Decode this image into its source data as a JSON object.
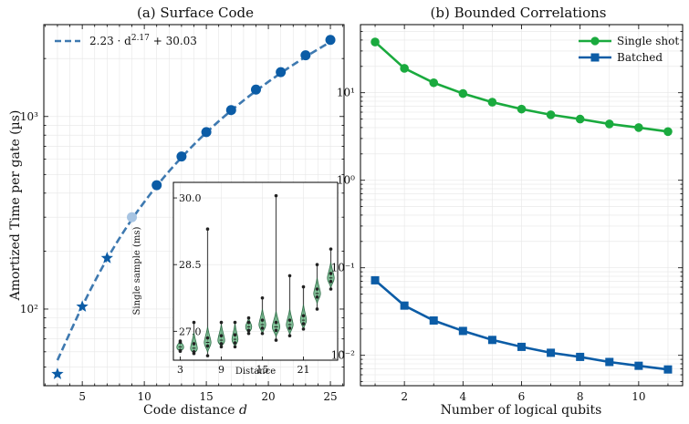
{
  "colors": {
    "blue": "#0b5ca6",
    "blue_light": "#a7c4e2",
    "green": "#1aaa3e",
    "violin_fill": "#6fb989",
    "violin_edge": "#2e6b46",
    "dark": "#222222"
  },
  "chart_data": [
    {
      "id": "left",
      "type": "scatter",
      "title": "(a) Surface Code",
      "xlabel": "Code distance d",
      "ylabel": "Amortized Time per gate (µs)",
      "xscale": "linear",
      "yscale": "log",
      "xlim": [
        1.9,
        26.1
      ],
      "ylim": [
        40,
        3000
      ],
      "xticks": [
        5,
        10,
        15,
        20,
        25
      ],
      "xtick_labels": [
        "5",
        "10",
        "15",
        "20",
        "25"
      ],
      "yticks": [
        100,
        1000
      ],
      "ytick_labels": [
        "10²",
        "10³"
      ],
      "legend": {
        "label": "2.23 · d^2.17 + 30.03",
        "base": "2.23 · d",
        "exp": "2.17",
        "tail": " + 30.03",
        "placement": "top-left"
      },
      "fit": {
        "a": 2.23,
        "b": 2.17,
        "c": 30.03,
        "x_from": 3,
        "x_to": 25
      },
      "star_points": {
        "x": [
          3,
          5,
          7
        ],
        "y": [
          46,
          103,
          184
        ]
      },
      "highlight_point": {
        "x": 9,
        "y": 300
      },
      "circle_points": {
        "x": [
          11,
          13,
          15,
          17,
          19,
          21,
          23,
          25
        ],
        "y": [
          440,
          620,
          830,
          1080,
          1380,
          1700,
          2080,
          2500
        ]
      }
    },
    {
      "id": "inset",
      "type": "violin",
      "xlabel": "Distance",
      "ylabel": "Single sample (ms)",
      "xlim": [
        2,
        26
      ],
      "ylim": [
        26.35,
        30.35
      ],
      "xticks": [
        3,
        9,
        15,
        21
      ],
      "xtick_labels": [
        "3",
        "9",
        "15",
        "21"
      ],
      "yticks": [
        27.0,
        28.5,
        30.0
      ],
      "ytick_labels": [
        "27.0",
        "28.5",
        "30.0"
      ],
      "violins": [
        {
          "x": 3,
          "median": 26.65,
          "lo": 26.55,
          "hi": 26.78,
          "width": 0.9
        },
        {
          "x": 5,
          "median": 26.62,
          "lo": 26.5,
          "hi": 27.2,
          "width": 0.9
        },
        {
          "x": 7,
          "median": 26.75,
          "lo": 26.45,
          "hi": 29.3,
          "width": 0.9
        },
        {
          "x": 9,
          "median": 26.8,
          "lo": 26.65,
          "hi": 27.2,
          "width": 0.9
        },
        {
          "x": 11,
          "median": 26.82,
          "lo": 26.65,
          "hi": 27.2,
          "width": 0.8
        },
        {
          "x": 13,
          "median": 27.1,
          "lo": 26.95,
          "hi": 27.3,
          "width": 0.8
        },
        {
          "x": 15,
          "median": 27.15,
          "lo": 26.95,
          "hi": 27.75,
          "width": 0.9
        },
        {
          "x": 17,
          "median": 27.1,
          "lo": 26.8,
          "hi": 30.05,
          "width": 1.0
        },
        {
          "x": 19,
          "median": 27.15,
          "lo": 26.9,
          "hi": 28.25,
          "width": 0.9
        },
        {
          "x": 21,
          "median": 27.25,
          "lo": 27.05,
          "hi": 28.0,
          "width": 0.8
        },
        {
          "x": 23,
          "median": 27.85,
          "lo": 27.5,
          "hi": 28.5,
          "width": 0.9
        },
        {
          "x": 25,
          "median": 28.2,
          "lo": 27.95,
          "hi": 28.85,
          "width": 0.9
        }
      ]
    },
    {
      "id": "right",
      "type": "line",
      "title": "(b) Bounded Correlations",
      "xlabel": "Number of logical qubits",
      "ylabel": "",
      "xscale": "linear",
      "yscale": "log",
      "xlim": [
        0.5,
        11.5
      ],
      "ylim": [
        0.0045,
        60
      ],
      "xticks": [
        2,
        4,
        6,
        8,
        10
      ],
      "xtick_labels": [
        "2",
        "4",
        "6",
        "8",
        "10"
      ],
      "yticks": [
        0.01,
        0.1,
        1,
        10
      ],
      "ytick_labels": [
        "10⁻²",
        "10⁻¹",
        "10⁰",
        "10¹"
      ],
      "legend_placement": "top-right",
      "x": [
        1,
        2,
        3,
        4,
        5,
        6,
        7,
        8,
        9,
        10,
        11
      ],
      "series": [
        {
          "name": "Single shot",
          "marker": "circle",
          "values": [
            38,
            19,
            13,
            9.8,
            7.8,
            6.5,
            5.6,
            5.0,
            4.4,
            4.0,
            3.6
          ]
        },
        {
          "name": "Batched",
          "marker": "square",
          "values": [
            0.072,
            0.037,
            0.025,
            0.019,
            0.015,
            0.0125,
            0.0107,
            0.0096,
            0.0084,
            0.0076,
            0.0069
          ]
        }
      ]
    }
  ]
}
